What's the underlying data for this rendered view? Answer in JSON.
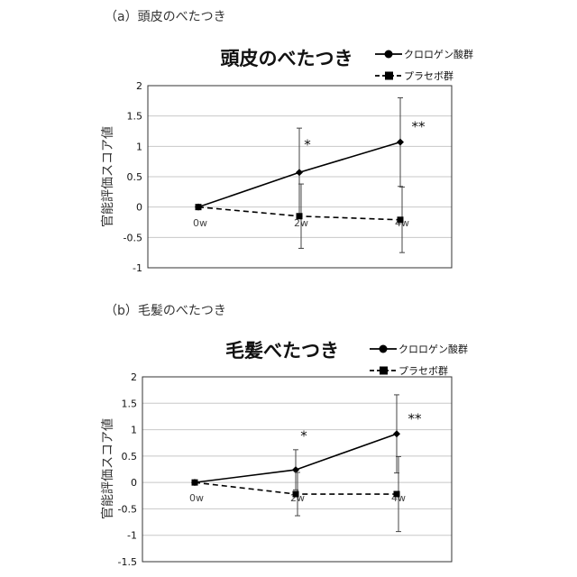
{
  "charts": [
    {
      "panel_label": "（a）頭皮のべたつき",
      "chart_data": {
        "type": "line",
        "title": "頭皮のべたつき",
        "xlabel": "",
        "ylabel": "官能評価スコア値",
        "categories": [
          "0w",
          "2w",
          "4w"
        ],
        "ylim": [
          -1,
          2
        ],
        "yticks": [
          "2",
          "1.5",
          "1",
          "0.5",
          "0",
          "-0.5",
          "-1"
        ],
        "ytick_values": [
          2,
          1.5,
          1,
          0.5,
          0,
          -0.5,
          -1
        ],
        "grid": true,
        "legend": "top-right",
        "series": [
          {
            "name": "クロロゲン酸群",
            "values": [
              0,
              0.57,
              1.07
            ],
            "err": [
              0,
              0.73,
              0.73
            ],
            "marker": "diamond",
            "style": "solid",
            "color": "#000000"
          },
          {
            "name": "プラセボ群",
            "values": [
              0,
              -0.15,
              -0.21
            ],
            "err": [
              0,
              0.53,
              0.54
            ],
            "marker": "square",
            "style": "dashed",
            "color": "#000000"
          }
        ],
        "annotations": [
          {
            "text": "*",
            "category": "2w",
            "y": 0.95
          },
          {
            "text": "**",
            "category": "4w",
            "y": 1.25
          }
        ]
      }
    },
    {
      "panel_label": "（b）毛髪のべたつき",
      "chart_data": {
        "type": "line",
        "title": "毛髪べたつき",
        "xlabel": "",
        "ylabel": "官能評価スコア値",
        "categories": [
          "0w",
          "2w",
          "4w"
        ],
        "ylim": [
          -1.5,
          2
        ],
        "yticks": [
          "2",
          "1.5",
          "1",
          "0.5",
          "0",
          "-0.5",
          "-1",
          "-1.5"
        ],
        "ytick_values": [
          2,
          1.5,
          1,
          0.5,
          0,
          -0.5,
          -1,
          -1.5
        ],
        "grid": true,
        "legend": "top-right",
        "series": [
          {
            "name": "クロロゲン酸群",
            "values": [
              0,
              0.24,
              0.92
            ],
            "err": [
              0,
              0.38,
              0.74
            ],
            "marker": "diamond",
            "style": "solid",
            "color": "#000000"
          },
          {
            "name": "プラセボ群",
            "values": [
              0,
              -0.22,
              -0.22
            ],
            "err": [
              0,
              0.41,
              0.71
            ],
            "marker": "square",
            "style": "dashed",
            "color": "#000000"
          }
        ],
        "annotations": [
          {
            "text": "*",
            "category": "2w",
            "y": 0.8
          },
          {
            "text": "**",
            "category": "4w",
            "y": 1.12
          }
        ]
      }
    }
  ]
}
